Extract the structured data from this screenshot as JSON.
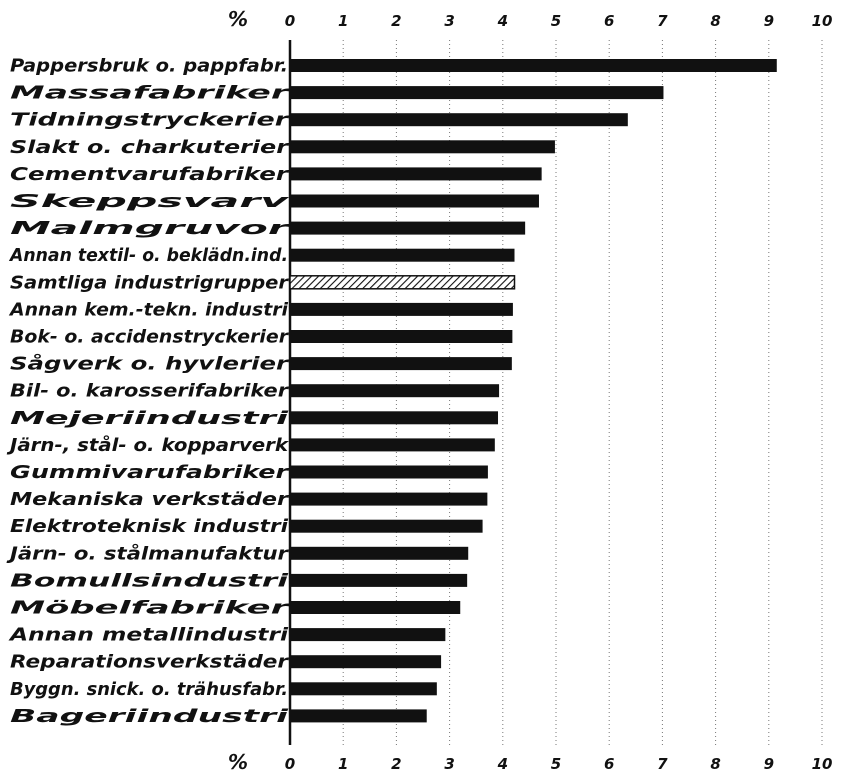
{
  "chart_data": {
    "type": "bar",
    "orientation": "horizontal",
    "unit_label": "%",
    "xlim": [
      0,
      10
    ],
    "ticks": [
      "0",
      "1",
      "2",
      "3",
      "4",
      "5",
      "6",
      "7",
      "8",
      "9",
      "10"
    ],
    "grid": "vertical",
    "categories": [
      "Pappersbruk o. pappfabr.",
      "Massafabriker",
      "Tidningstryckerier",
      "Slakt o. charkuterier",
      "Cementvarufabriker",
      "Skeppsvarv",
      "Malmgruvor",
      "Annan textil- o. beklädn.ind.",
      "Samtliga industrigrupper",
      "Annan kem.-tekn. industri",
      "Bok- o. accidenstryckerier",
      "Sågverk o. hyvlerier",
      "Bil- o. karosserifabriker",
      "Mejeriindustri",
      "Järn-, stål- o. kopparverk",
      "Gummivarufabriker",
      "Mekaniska verkstäder",
      "Elektroteknisk industri",
      "Järn- o. stålmanufaktur",
      "Bomullsindustri",
      "Möbelfabriker",
      "Annan metallindustri",
      "Reparationsverkstäder",
      "Byggn. snick. o. trähusfabr.",
      "Bageriindustri"
    ],
    "values": [
      9.15,
      7.02,
      6.35,
      4.98,
      4.73,
      4.68,
      4.42,
      4.22,
      4.22,
      4.19,
      4.18,
      4.17,
      3.93,
      3.91,
      3.85,
      3.72,
      3.71,
      3.62,
      3.35,
      3.33,
      3.2,
      2.92,
      2.84,
      2.76,
      2.57
    ],
    "highlighted": "Samtliga industrigrupper",
    "colors": {
      "bar": "#111111",
      "highlight_hatch": "#111111",
      "grid": "#777777"
    }
  }
}
